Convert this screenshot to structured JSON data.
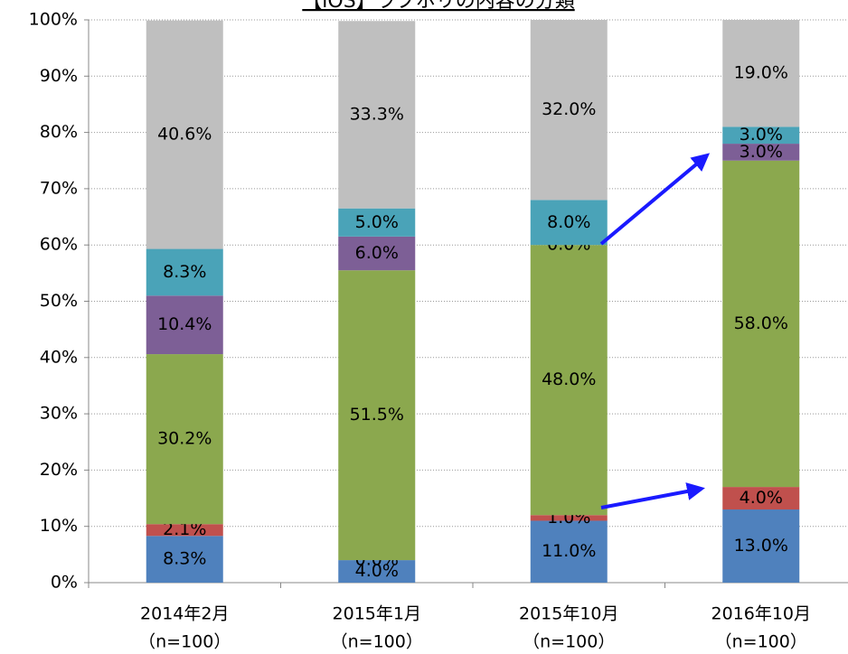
{
  "chart_data": {
    "type": "stacked_bar",
    "title": "【iOS】ラブホリの内容の分類",
    "categories": [
      "2014年2月",
      "2015年1月",
      "2015年10月",
      "2016年10月"
    ],
    "category_notes": [
      "（n=100）",
      "（n=100）",
      "（n=100）",
      "（n=100）"
    ],
    "series": [
      {
        "color": "#4f81bd",
        "values": [
          8.3,
          4.0,
          11.0,
          13.0
        ],
        "value_labels": [
          "8.3%",
          "4.0%",
          "11.0%",
          "13.0%"
        ]
      },
      {
        "color": "#c0504d",
        "values": [
          2.1,
          0.0,
          1.0,
          4.0
        ],
        "value_labels": [
          "2.1%",
          "0.0%",
          "1.0%",
          "4.0%"
        ]
      },
      {
        "color": "#8ba84e",
        "values": [
          30.2,
          51.5,
          48.0,
          58.0
        ],
        "value_labels": [
          "30.2%",
          "51.5%",
          "48.0%",
          "58.0%"
        ]
      },
      {
        "color": "#7d5f96",
        "values": [
          10.4,
          6.0,
          0.0,
          3.0
        ],
        "value_labels": [
          "10.4%",
          "6.0%",
          "0.0%",
          "3.0%"
        ]
      },
      {
        "color": "#4aa3b8",
        "values": [
          8.3,
          5.0,
          8.0,
          3.0
        ],
        "value_labels": [
          "8.3%",
          "5.0%",
          "8.0%",
          "3.0%"
        ]
      },
      {
        "color": "#bfbfbf",
        "values": [
          40.6,
          33.3,
          32.0,
          19.0
        ],
        "value_labels": [
          "40.6%",
          "33.3%",
          "32.0%",
          "19.0%"
        ]
      }
    ],
    "ylim": [
      0,
      100
    ],
    "yticks": [
      {
        "value": 0,
        "label": "0%"
      },
      {
        "value": 10,
        "label": "10%"
      },
      {
        "value": 20,
        "label": "20%"
      },
      {
        "value": 30,
        "label": "30%"
      },
      {
        "value": 40,
        "label": "40%"
      },
      {
        "value": 50,
        "label": "50%"
      },
      {
        "value": 60,
        "label": "60%"
      },
      {
        "value": 70,
        "label": "70%"
      },
      {
        "value": 80,
        "label": "80%"
      },
      {
        "value": 90,
        "label": "90%"
      },
      {
        "value": 100,
        "label": "100%"
      }
    ],
    "grid": true
  }
}
